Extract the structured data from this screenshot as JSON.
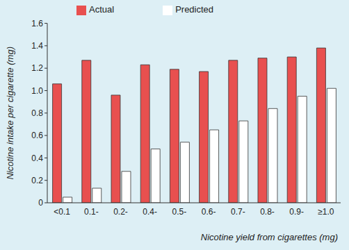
{
  "chart_data": {
    "type": "bar",
    "x_label": "Nicotine yield from cigarettes (mg)",
    "y_label": "Nicotine intake per cigarette (mg)",
    "categories": [
      "<0.1",
      "0.1-",
      "0.2-",
      "0.4-",
      "0.5-",
      "0.6-",
      "0.7-",
      "0.8-",
      "0.9-",
      "≥1.0"
    ],
    "series": [
      {
        "name": "Actual",
        "color": "#e8504f",
        "values": [
          1.06,
          1.27,
          0.96,
          1.23,
          1.19,
          1.17,
          1.27,
          1.29,
          1.3,
          1.38
        ]
      },
      {
        "name": "Predicted",
        "color": "#ffffff",
        "values": [
          0.05,
          0.13,
          0.28,
          0.48,
          0.54,
          0.65,
          0.73,
          0.84,
          0.95,
          1.02
        ]
      }
    ],
    "ylim": [
      0,
      1.6
    ],
    "yticks": [
      0,
      0.2,
      0.4,
      0.6,
      0.8,
      {
        "value": 1,
        "label": "1.0"
      },
      1.2,
      1.4,
      1.6
    ],
    "grid": false,
    "legend": "top"
  }
}
